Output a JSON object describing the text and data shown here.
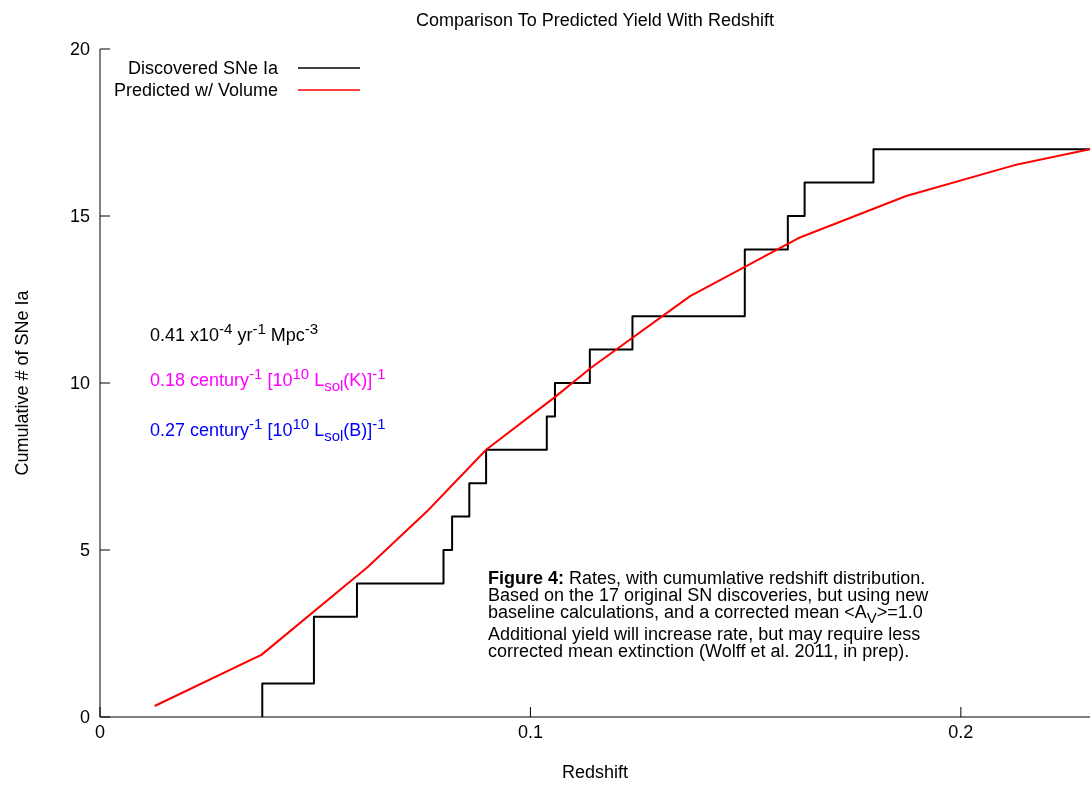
{
  "chart_data": {
    "type": "line",
    "title": "Comparison To Predicted Yield With Redshift",
    "xlabel": "Redshift",
    "ylabel": "Cumulative # of SNe Ia",
    "xlim": [
      0,
      0.23
    ],
    "ylim": [
      0,
      20
    ],
    "xticks": [
      0,
      0.1,
      0.2
    ],
    "yticks": [
      0,
      5,
      10,
      15,
      20
    ],
    "grid": false,
    "legend": "top left",
    "marker": "none",
    "series": [
      {
        "name": "Discovered SNe Ia",
        "type": "step",
        "color": "#000000",
        "x": [
          0.0377,
          0.0377,
          0.0497,
          0.0597,
          0.0798,
          0.0818,
          0.0858,
          0.0897,
          0.1038,
          0.1057,
          0.1138,
          0.1237,
          0.1498,
          0.1598,
          0.1637,
          0.1797,
          0.23
        ],
        "values": [
          0,
          1,
          3,
          4,
          5,
          6,
          7,
          8,
          9,
          10,
          11,
          12,
          14,
          15,
          16,
          17,
          17
        ]
      },
      {
        "name": "Predicted w/ Volume",
        "type": "line",
        "color": "#ff0000",
        "x": [
          0.0127,
          0.0375,
          0.0622,
          0.0763,
          0.0897,
          0.1059,
          0.114,
          0.1371,
          0.1623,
          0.1873,
          0.2127,
          0.23
        ],
        "values": [
          0.33,
          1.86,
          4.49,
          6.2,
          8.0,
          9.6,
          10.45,
          12.6,
          14.34,
          15.6,
          16.53,
          17
        ]
      }
    ],
    "annotations": [
      "0.41 x10$^{-4}$ yr$^{-1}$ Mpc$^{-3}$",
      "0.18 century$^{-1}$ [10$^{10}$ L$_{sol}$(K)]$^{-1}$",
      "0.27 century$^{-1}$ [10$^{10}$ L$_{sol}$(B)]$^{-1}$",
      "Figure 4: Rates, with cumumlative redshift distribution.\nBased on the 17 original SN discoveries, but using new\nbaseline calculations, and a corrected mean <A$_{V}$>=1.0\nAdditional yield will increase rate, but may require less\ncorrected mean extinction (Wolff et al. 2011, in prep)."
    ]
  }
}
